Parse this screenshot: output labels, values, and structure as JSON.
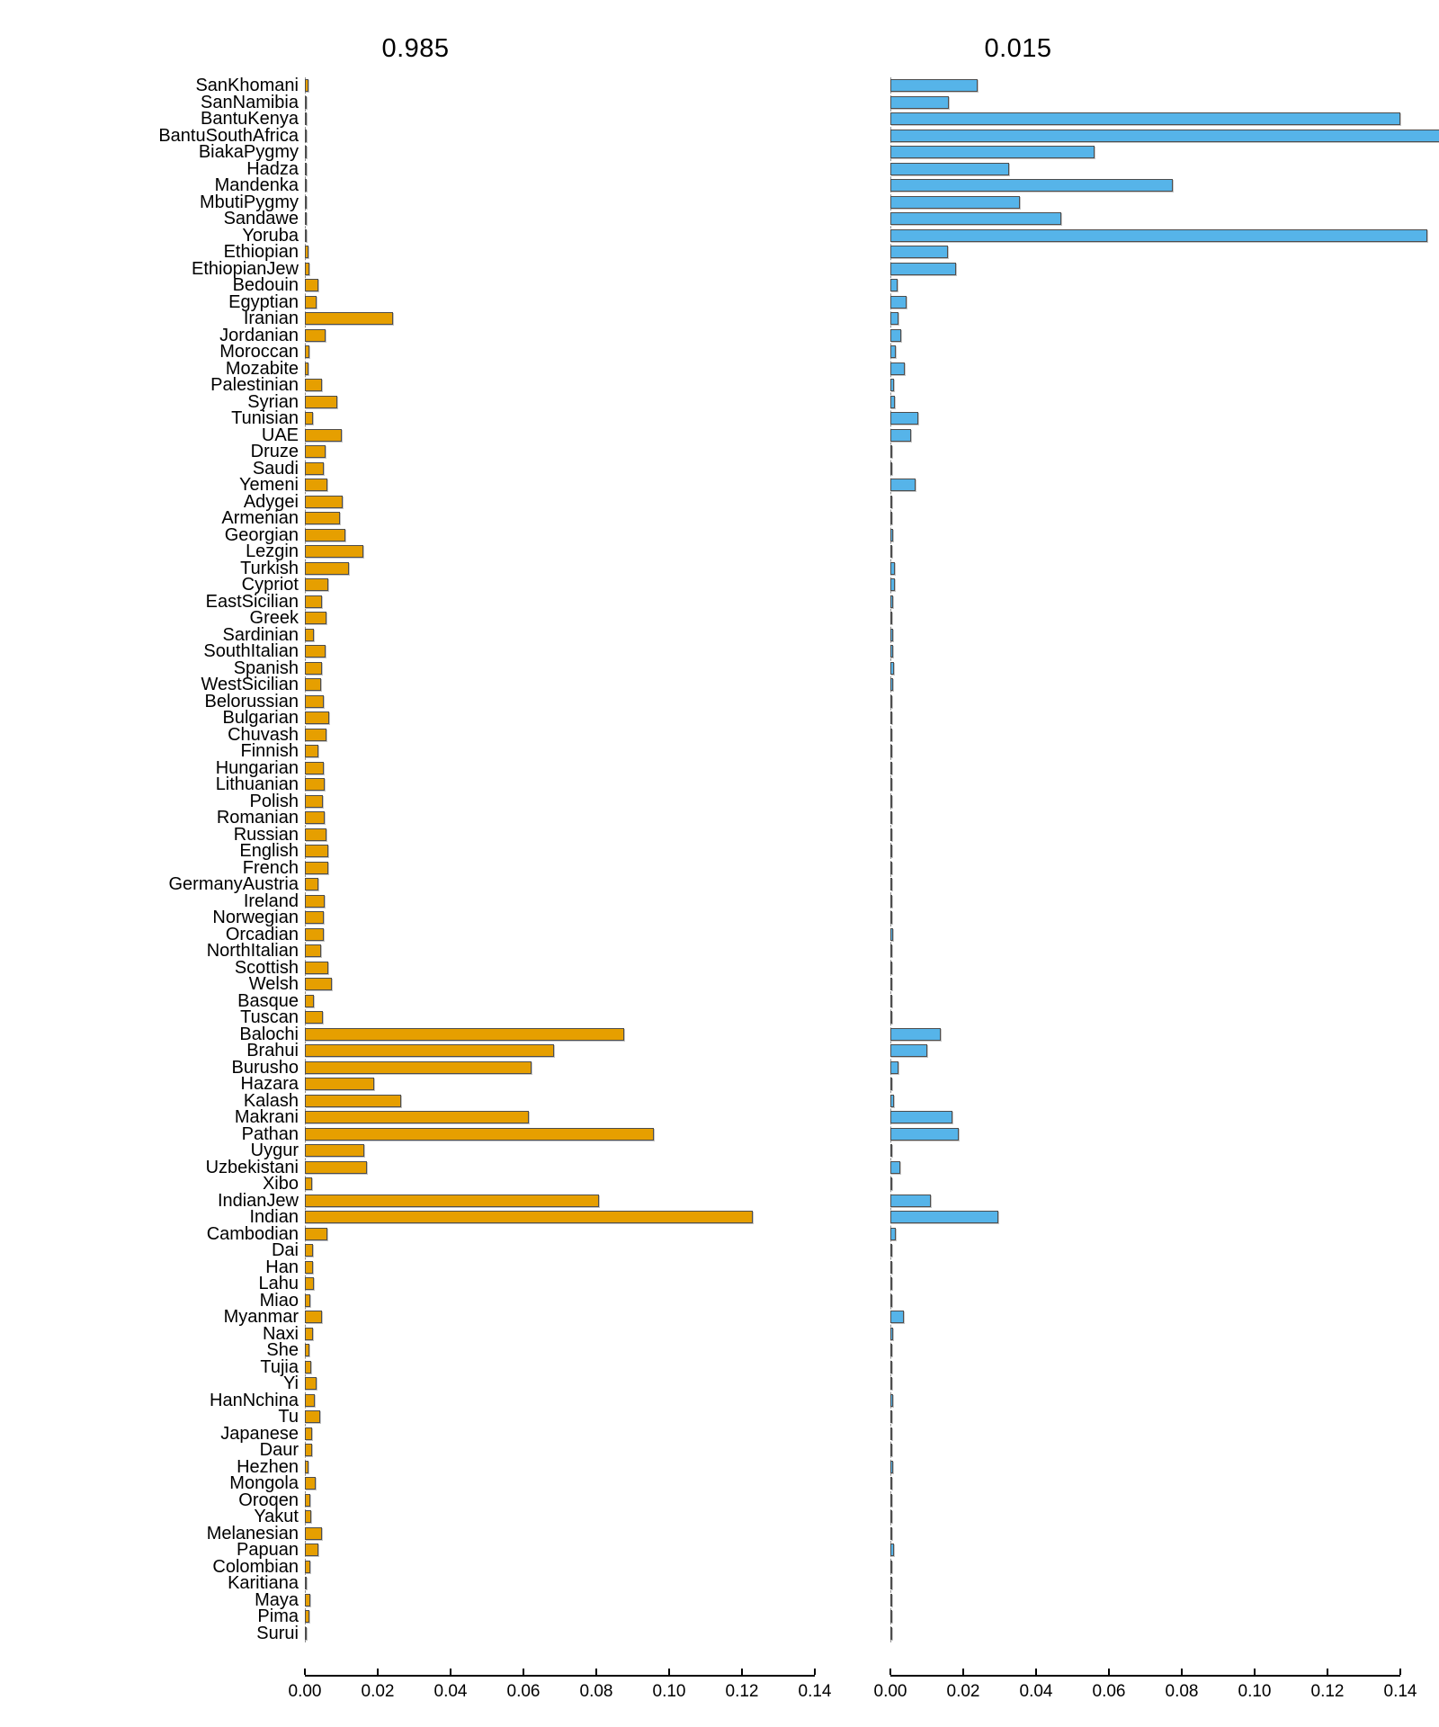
{
  "chart_data": {
    "type": "bar",
    "orientation": "horizontal",
    "title": "",
    "xlabel": "",
    "ylabel": "",
    "xlim": [
      0,
      0.14
    ],
    "x_ticks": [
      "0.00",
      "0.02",
      "0.04",
      "0.06",
      "0.08",
      "0.10",
      "0.12",
      "0.14"
    ],
    "grid": false,
    "legend": "none",
    "panels": [
      {
        "title": "0.985",
        "color": "#E69F00"
      },
      {
        "title": "0.015",
        "color": "#56B4E9"
      }
    ],
    "categories": [
      "SanKhomani",
      "SanNamibia",
      "BantuKenya",
      "BantuSouthAfrica",
      "BiakaPygmy",
      "Hadza",
      "Mandenka",
      "MbutiPygmy",
      "Sandawe",
      "Yoruba",
      "Ethiopian",
      "EthiopianJew",
      "Bedouin",
      "Egyptian",
      "Iranian",
      "Jordanian",
      "Moroccan",
      "Mozabite",
      "Palestinian",
      "Syrian",
      "Tunisian",
      "UAE",
      "Druze",
      "Saudi",
      "Yemeni",
      "Adygei",
      "Armenian",
      "Georgian",
      "Lezgin",
      "Turkish",
      "Cypriot",
      "EastSicilian",
      "Greek",
      "Sardinian",
      "SouthItalian",
      "Spanish",
      "WestSicilian",
      "Belorussian",
      "Bulgarian",
      "Chuvash",
      "Finnish",
      "Hungarian",
      "Lithuanian",
      "Polish",
      "Romanian",
      "Russian",
      "English",
      "French",
      "GermanyAustria",
      "Ireland",
      "Norwegian",
      "Orcadian",
      "NorthItalian",
      "Scottish",
      "Welsh",
      "Basque",
      "Tuscan",
      "Balochi",
      "Brahui",
      "Burusho",
      "Hazara",
      "Kalash",
      "Makrani",
      "Pathan",
      "Uygur",
      "Uzbekistani",
      "Xibo",
      "IndianJew",
      "Indian",
      "Cambodian",
      "Dai",
      "Han",
      "Lahu",
      "Miao",
      "Myanmar",
      "Naxi",
      "She",
      "Tujia",
      "Yi",
      "HanNchina",
      "Tu",
      "Japanese",
      "Daur",
      "Hezhen",
      "Mongola",
      "Oroqen",
      "Yakut",
      "Melanesian",
      "Papuan",
      "Colombian",
      "Karitiana",
      "Maya",
      "Pima",
      "Surui"
    ],
    "series": [
      {
        "name": "0.985",
        "values": [
          0.001,
          0.0002,
          0.0002,
          0.0003,
          0.0002,
          0.0006,
          0.0002,
          0.0003,
          0.0005,
          0.0002,
          0.0009,
          0.0012,
          0.0036,
          0.0033,
          0.0243,
          0.0056,
          0.0013,
          0.001,
          0.0048,
          0.0088,
          0.0021,
          0.01,
          0.0058,
          0.0052,
          0.0062,
          0.0104,
          0.0097,
          0.0112,
          0.016,
          0.012,
          0.0064,
          0.0046,
          0.0059,
          0.0024,
          0.0058,
          0.0046,
          0.0045,
          0.0051,
          0.0066,
          0.0059,
          0.0036,
          0.0052,
          0.0055,
          0.005,
          0.0054,
          0.006,
          0.0064,
          0.0064,
          0.0038,
          0.0055,
          0.0051,
          0.0051,
          0.0045,
          0.0065,
          0.0074,
          0.0024,
          0.0049,
          0.0877,
          0.0683,
          0.0623,
          0.019,
          0.0263,
          0.0616,
          0.0959,
          0.0164,
          0.0171,
          0.0019,
          0.0808,
          0.123,
          0.0061,
          0.0021,
          0.0022,
          0.0024,
          0.0014,
          0.0046,
          0.0023,
          0.0013,
          0.0018,
          0.0031,
          0.0026,
          0.0042,
          0.0019,
          0.002,
          0.001,
          0.0029,
          0.0016,
          0.0018,
          0.0047,
          0.0038,
          0.0014,
          0.0003,
          0.0016,
          0.0012,
          0.0001
        ]
      },
      {
        "name": "0.015",
        "values": [
          0.024,
          0.016,
          0.14,
          0.1545,
          0.056,
          0.0325,
          0.0775,
          0.0355,
          0.047,
          0.1475,
          0.0157,
          0.0181,
          0.002,
          0.0045,
          0.0022,
          0.003,
          0.0016,
          0.004,
          0.001,
          0.0012,
          0.0076,
          0.0058,
          0.0005,
          0.0006,
          0.0068,
          0.0005,
          0.0003,
          0.0008,
          0.0004,
          0.0012,
          0.0012,
          0.0008,
          0.0006,
          0.0008,
          0.0008,
          0.001,
          0.0008,
          0.0005,
          0.0006,
          0.0004,
          0.0005,
          0.0003,
          0.0004,
          0.0004,
          0.0005,
          0.0005,
          0.0004,
          0.0005,
          0.0004,
          0.0004,
          0.0004,
          0.0008,
          0.0006,
          0.0004,
          0.0004,
          0.0006,
          0.0004,
          0.0139,
          0.0101,
          0.0021,
          0.0006,
          0.0009,
          0.0171,
          0.0188,
          0.0006,
          0.0026,
          0.0003,
          0.0112,
          0.0297,
          0.0015,
          0.0004,
          0.0003,
          0.0003,
          0.0003,
          0.0036,
          0.0008,
          0.0003,
          0.0003,
          0.0003,
          0.0008,
          0.0003,
          0.0003,
          0.0003,
          0.0008,
          0.0004,
          0.0003,
          0.0004,
          0.0004,
          0.001,
          0.0003,
          0.0002,
          0.0006,
          0.0003,
          0.0002
        ]
      }
    ]
  }
}
